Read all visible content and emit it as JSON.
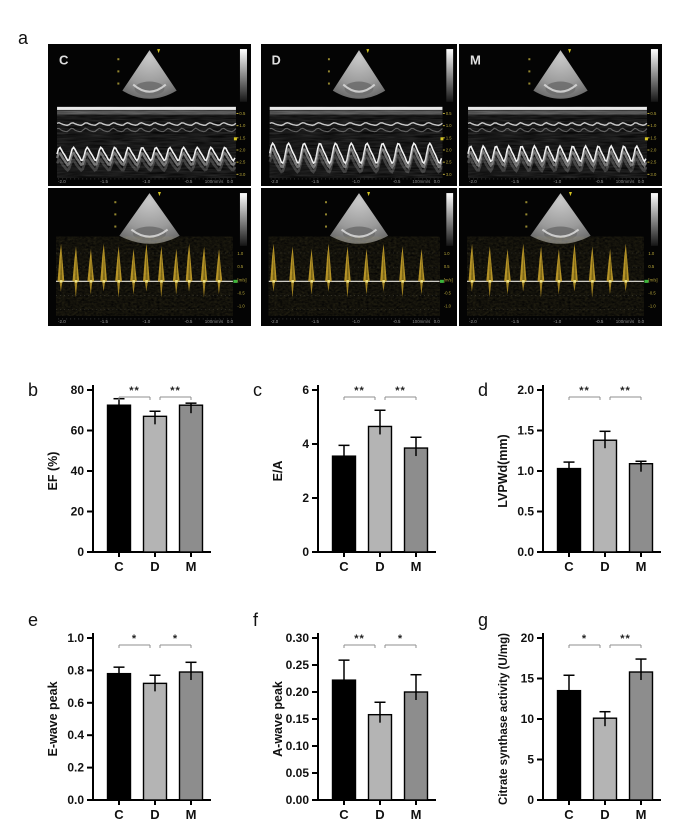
{
  "figure": {
    "panel_a": {
      "label": "a",
      "groups": [
        "C",
        "D",
        "M"
      ],
      "mmode_row": {
        "panels": [
          {
            "label": "C",
            "cycles": 13,
            "amp": 6
          },
          {
            "label": "D",
            "cycles": 11,
            "amp": 9
          },
          {
            "label": "M",
            "cycles": 14,
            "amp": 7
          }
        ],
        "depth_scale": [
          "0.5",
          "1.0",
          "1.5",
          "2.0",
          "2.5",
          "3.0"
        ]
      },
      "doppler_row": {
        "panels": [
          {
            "label": "C",
            "beats": 12
          },
          {
            "label": "D",
            "beats": 9
          },
          {
            "label": "M",
            "beats": 10
          }
        ],
        "velocity_scale": [
          "1.0",
          "0.5",
          "[m/s]",
          "-0.5",
          "-1.0"
        ]
      },
      "time_axis": [
        "-2.0",
        "-1.5",
        "-1.0",
        "-0.5",
        "0.0"
      ],
      "sweep_speed": "100mm/s"
    },
    "bar_colors": {
      "C": "#000000",
      "D": "#b4b4b4",
      "M": "#8d8d8d"
    },
    "sig_line_color": "#8f8f8f",
    "sig_text_color": "#222222"
  },
  "chart_data": [
    {
      "panel": "b",
      "type": "bar",
      "categories": [
        "C",
        "D",
        "M"
      ],
      "values": [
        72.5,
        67.0,
        72.5
      ],
      "errors_up": [
        3.2,
        2.5,
        1.0
      ],
      "ylabel": "EF (%)",
      "ylim": [
        0,
        80
      ],
      "yticks": [
        "0",
        "20",
        "40",
        "60",
        "80"
      ],
      "significance": [
        {
          "pair": [
            0,
            1
          ],
          "label": "**"
        },
        {
          "pair": [
            1,
            2
          ],
          "label": "**"
        }
      ]
    },
    {
      "panel": "c",
      "type": "bar",
      "categories": [
        "C",
        "D",
        "M"
      ],
      "values": [
        3.55,
        4.65,
        3.85
      ],
      "errors_up": [
        0.4,
        0.6,
        0.4
      ],
      "ylabel": "E/A",
      "ylim": [
        0,
        6
      ],
      "yticks": [
        "0",
        "2",
        "4",
        "6"
      ],
      "significance": [
        {
          "pair": [
            0,
            1
          ],
          "label": "**"
        },
        {
          "pair": [
            1,
            2
          ],
          "label": "**"
        }
      ]
    },
    {
      "panel": "d",
      "type": "bar",
      "categories": [
        "C",
        "D",
        "M"
      ],
      "values": [
        1.03,
        1.38,
        1.09
      ],
      "errors_up": [
        0.08,
        0.11,
        0.03
      ],
      "ylabel": "LVPWd(mm)",
      "ylim": [
        0,
        2.0
      ],
      "yticks": [
        "0.0",
        "0.5",
        "1.0",
        "1.5",
        "2.0"
      ],
      "significance": [
        {
          "pair": [
            0,
            1
          ],
          "label": "**"
        },
        {
          "pair": [
            1,
            2
          ],
          "label": "**"
        }
      ]
    },
    {
      "panel": "e",
      "type": "bar",
      "categories": [
        "C",
        "D",
        "M"
      ],
      "values": [
        0.78,
        0.72,
        0.79
      ],
      "errors_up": [
        0.04,
        0.05,
        0.06
      ],
      "ylabel": "E-wave peak",
      "ylim": [
        0,
        1.0
      ],
      "yticks": [
        "0.0",
        "0.2",
        "0.4",
        "0.6",
        "0.8",
        "1.0"
      ],
      "significance": [
        {
          "pair": [
            0,
            1
          ],
          "label": "*"
        },
        {
          "pair": [
            1,
            2
          ],
          "label": "*"
        }
      ]
    },
    {
      "panel": "f",
      "type": "bar",
      "categories": [
        "C",
        "D",
        "M"
      ],
      "values": [
        0.222,
        0.158,
        0.2
      ],
      "errors_up": [
        0.037,
        0.023,
        0.032
      ],
      "ylabel": "A-wave peak",
      "ylim": [
        0,
        0.3
      ],
      "yticks": [
        "0.00",
        "0.05",
        "0.10",
        "0.15",
        "0.20",
        "0.25",
        "0.30"
      ],
      "significance": [
        {
          "pair": [
            0,
            1
          ],
          "label": "**"
        },
        {
          "pair": [
            1,
            2
          ],
          "label": "*"
        }
      ]
    },
    {
      "panel": "g",
      "type": "bar",
      "categories": [
        "C",
        "D",
        "M"
      ],
      "values": [
        13.5,
        10.1,
        15.8
      ],
      "errors_up": [
        1.9,
        0.8,
        1.6
      ],
      "ylabel": "Citrate synthase activity (U/mg)",
      "ylim": [
        0,
        20
      ],
      "yticks": [
        "0",
        "5",
        "10",
        "15",
        "20"
      ],
      "significance": [
        {
          "pair": [
            0,
            1
          ],
          "label": "*"
        },
        {
          "pair": [
            1,
            2
          ],
          "label": "**"
        }
      ]
    }
  ]
}
